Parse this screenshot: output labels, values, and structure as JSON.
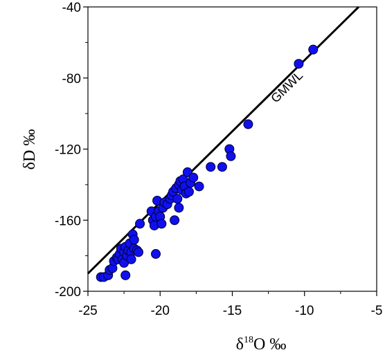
{
  "chart_data": {
    "type": "scatter",
    "xlabel": "δ18O ‰",
    "xlabel_parts": {
      "delta": "δ",
      "sup": "18",
      "rest": "O ‰"
    },
    "ylabel": "δD ‰",
    "xlim": [
      -25,
      -5
    ],
    "ylim": [
      -200,
      -40
    ],
    "x_ticks": [
      -25,
      -20,
      -15,
      -10,
      -5
    ],
    "y_ticks": [
      -200,
      -160,
      -120,
      -80,
      -40
    ],
    "x_tick_labels": [
      "-25",
      "-20",
      "-15",
      "-10",
      "-5"
    ],
    "y_tick_labels": [
      "-200",
      "-160",
      "-120",
      "-80",
      "-40"
    ],
    "grid": false,
    "reference_line": {
      "label": "GMWL",
      "slope": 8,
      "intercept": 10
    },
    "marker_color": "#1010ee",
    "marker_edge": "#000033",
    "points": [
      {
        "x": -24.1,
        "y": -192
      },
      {
        "x": -23.9,
        "y": -192
      },
      {
        "x": -23.6,
        "y": -191
      },
      {
        "x": -23.5,
        "y": -188
      },
      {
        "x": -23.3,
        "y": -187
      },
      {
        "x": -23.2,
        "y": -183
      },
      {
        "x": -23.0,
        "y": -181
      },
      {
        "x": -22.9,
        "y": -182
      },
      {
        "x": -22.8,
        "y": -179
      },
      {
        "x": -22.7,
        "y": -176
      },
      {
        "x": -22.6,
        "y": -182
      },
      {
        "x": -22.5,
        "y": -184
      },
      {
        "x": -22.5,
        "y": -178
      },
      {
        "x": -22.4,
        "y": -175
      },
      {
        "x": -22.4,
        "y": -191
      },
      {
        "x": -22.3,
        "y": -180
      },
      {
        "x": -22.2,
        "y": -177
      },
      {
        "x": -22.1,
        "y": -173
      },
      {
        "x": -22.0,
        "y": -178
      },
      {
        "x": -22.0,
        "y": -182
      },
      {
        "x": -21.9,
        "y": -168
      },
      {
        "x": -21.8,
        "y": -171
      },
      {
        "x": -21.8,
        "y": -176
      },
      {
        "x": -21.6,
        "y": -177
      },
      {
        "x": -21.5,
        "y": -178
      },
      {
        "x": -21.4,
        "y": -162
      },
      {
        "x": -20.6,
        "y": -155
      },
      {
        "x": -20.5,
        "y": -160
      },
      {
        "x": -20.4,
        "y": -163
      },
      {
        "x": -20.3,
        "y": -158
      },
      {
        "x": -20.3,
        "y": -179
      },
      {
        "x": -20.2,
        "y": -149
      },
      {
        "x": -20.1,
        "y": -155
      },
      {
        "x": -20.0,
        "y": -158
      },
      {
        "x": -19.9,
        "y": -162
      },
      {
        "x": -19.8,
        "y": -153
      },
      {
        "x": -19.7,
        "y": -150
      },
      {
        "x": -19.5,
        "y": -151
      },
      {
        "x": -19.3,
        "y": -148
      },
      {
        "x": -19.2,
        "y": -146
      },
      {
        "x": -19.1,
        "y": -144
      },
      {
        "x": -19.0,
        "y": -160
      },
      {
        "x": -18.9,
        "y": -142
      },
      {
        "x": -18.8,
        "y": -148
      },
      {
        "x": -18.7,
        "y": -140
      },
      {
        "x": -18.7,
        "y": -153
      },
      {
        "x": -18.6,
        "y": -138
      },
      {
        "x": -18.5,
        "y": -143
      },
      {
        "x": -18.4,
        "y": -137
      },
      {
        "x": -18.3,
        "y": -141
      },
      {
        "x": -18.2,
        "y": -145
      },
      {
        "x": -18.1,
        "y": -133
      },
      {
        "x": -18.0,
        "y": -144
      },
      {
        "x": -17.9,
        "y": -139
      },
      {
        "x": -17.7,
        "y": -136
      },
      {
        "x": -17.3,
        "y": -141
      },
      {
        "x": -16.5,
        "y": -130
      },
      {
        "x": -15.7,
        "y": -130
      },
      {
        "x": -15.2,
        "y": -120
      },
      {
        "x": -15.1,
        "y": -124
      },
      {
        "x": -13.9,
        "y": -106
      },
      {
        "x": -10.4,
        "y": -72
      },
      {
        "x": -9.4,
        "y": -64
      }
    ]
  }
}
